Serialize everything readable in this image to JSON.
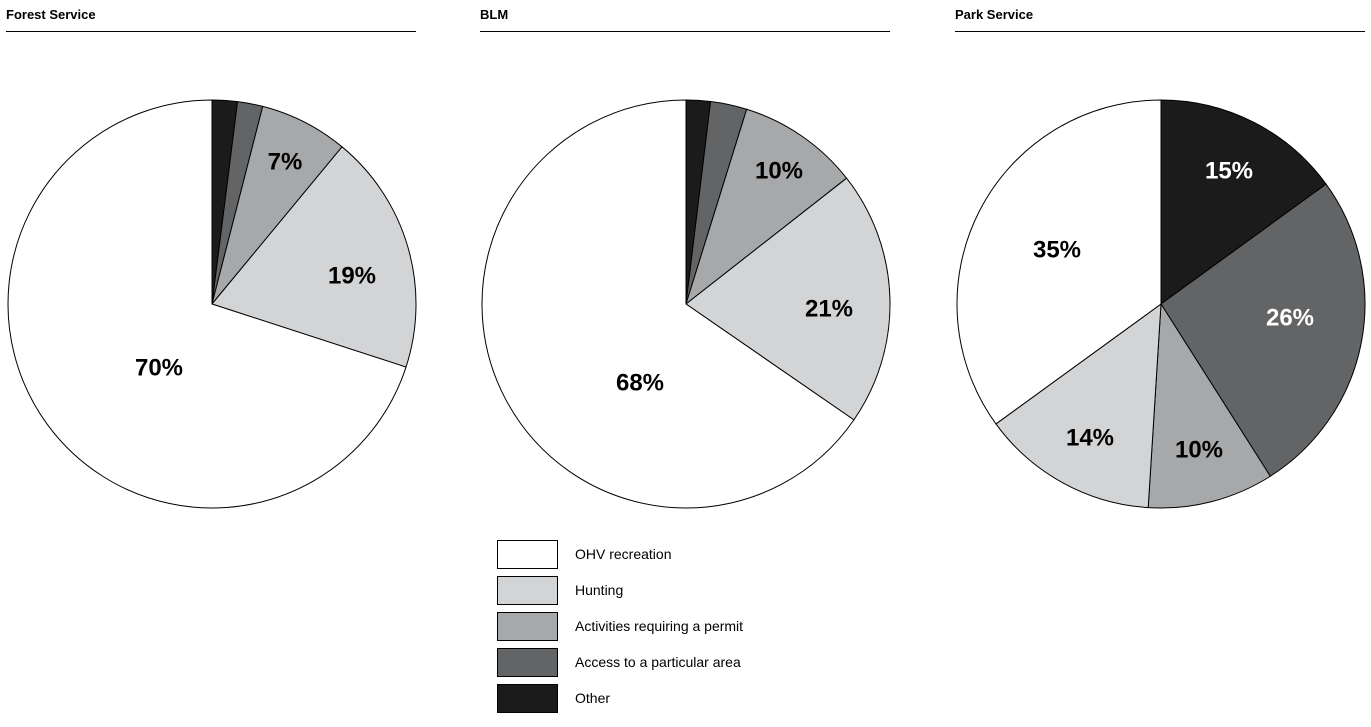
{
  "colors": {
    "ohv": "#ffffff",
    "hunting": "#d3d4d6",
    "permit": "#a7a8aa",
    "access": "#636466",
    "other": "#1b1b1b",
    "outline": "#000000"
  },
  "legend": [
    {
      "key": "ohv",
      "label": "OHV recreation"
    },
    {
      "key": "hunting",
      "label": "Hunting"
    },
    {
      "key": "permit",
      "label": "Activities requiring a permit"
    },
    {
      "key": "access",
      "label": "Access to a particular area"
    },
    {
      "key": "other",
      "label": "Other"
    }
  ],
  "chart_data": [
    {
      "type": "pie",
      "title": "Forest Service",
      "slices": [
        {
          "key": "other",
          "value": 2,
          "label": "2%"
        },
        {
          "key": "access",
          "value": 2,
          "label": "2%"
        },
        {
          "key": "permit",
          "value": 7,
          "label": "7%"
        },
        {
          "key": "hunting",
          "value": 19,
          "label": "19%"
        },
        {
          "key": "ohv",
          "value": 70,
          "label": "70%"
        }
      ]
    },
    {
      "type": "pie",
      "title": "BLM",
      "slices": [
        {
          "key": "other",
          "value": 2,
          "label": "2%"
        },
        {
          "key": "access",
          "value": 3,
          "label": "3%"
        },
        {
          "key": "permit",
          "value": 10,
          "label": "10%"
        },
        {
          "key": "hunting",
          "value": 21,
          "label": "21%"
        },
        {
          "key": "ohv",
          "value": 68,
          "label": "68%"
        }
      ]
    },
    {
      "type": "pie",
      "title": "Park Service",
      "slices": [
        {
          "key": "other",
          "value": 15,
          "label": "15%"
        },
        {
          "key": "access",
          "value": 26,
          "label": "26%"
        },
        {
          "key": "permit",
          "value": 10,
          "label": "10%"
        },
        {
          "key": "hunting",
          "value": 14,
          "label": "14%"
        },
        {
          "key": "ohv",
          "value": 35,
          "label": "35%"
        }
      ]
    }
  ]
}
